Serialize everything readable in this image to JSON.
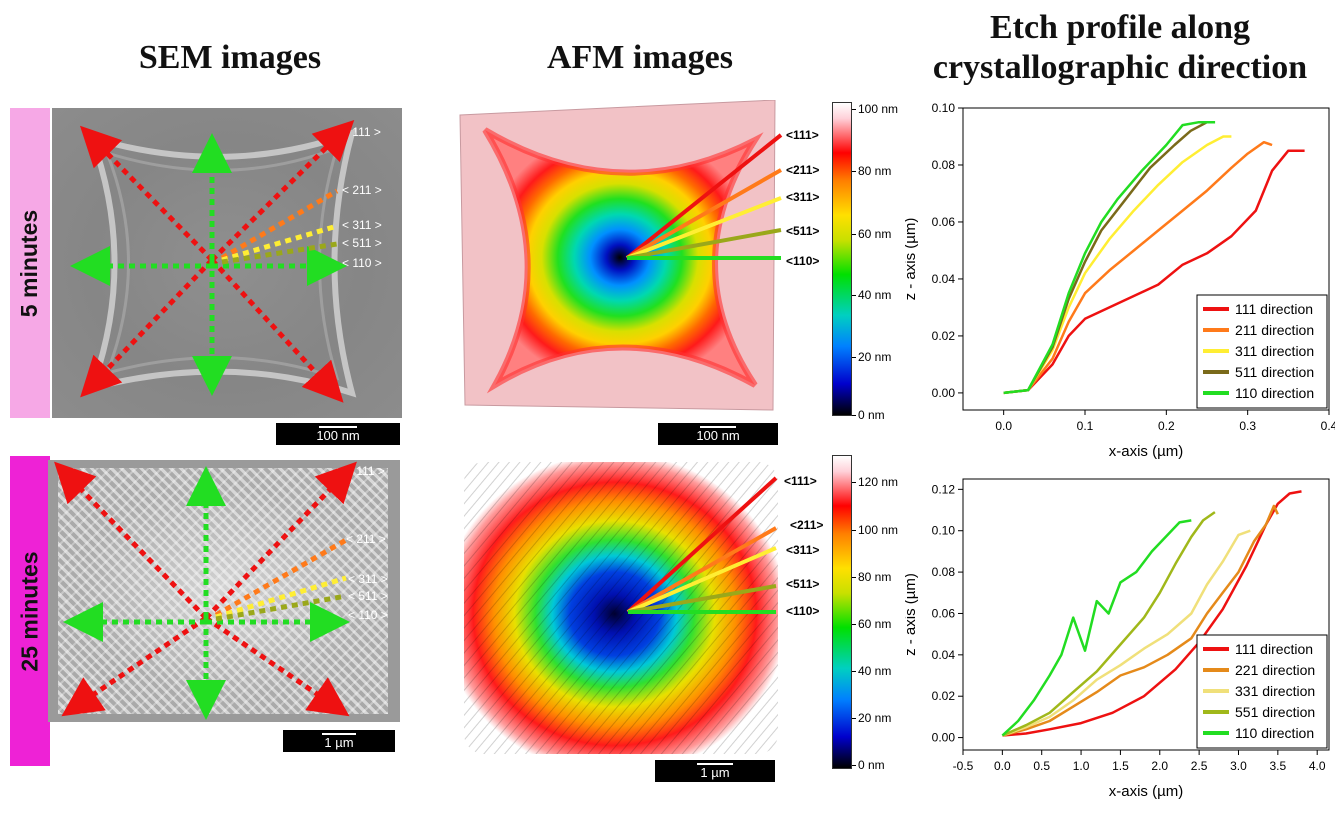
{
  "headings": {
    "sem": "SEM images",
    "afm": "AFM images",
    "etch_line1": "Etch profile along",
    "etch_line2": "crystallographic direction"
  },
  "rows": [
    {
      "label": "5 minutes",
      "label_color": "#f6a8e6",
      "sem_scale": "100 nm",
      "afm_scale": "100 nm",
      "sem_directions": [
        "< 111 >",
        "< 211 >",
        "< 311 >",
        "< 511 >",
        "< 110 >"
      ],
      "afm_directions": [
        "<111>",
        "<211>",
        "<311>",
        "<511>",
        "<110>"
      ],
      "colorbar_ticks": [
        "100 nm",
        "80 nm",
        "60 nm",
        "40 nm",
        "20 nm",
        "0 nm"
      ]
    },
    {
      "label": "25 minutes",
      "label_color": "#ee22d6",
      "sem_scale": "1 µm",
      "afm_scale": "1 µm",
      "sem_directions": [
        "< 111 >",
        "< 211 >",
        "< 311 >",
        "< 511 >",
        "< 110 >"
      ],
      "afm_directions": [
        "<111>",
        "<211>",
        "<311>",
        "<511>",
        "<110>"
      ],
      "colorbar_ticks": [
        "120 nm",
        "100 nm",
        "80 nm",
        "60 nm",
        "40 nm",
        "20 nm",
        "0 nm"
      ]
    }
  ],
  "colors": {
    "dir_111": "#ee1111",
    "dir_211": "#ff7a1a",
    "dir_311": "#ffee33",
    "dir_511": "#8a9a1a",
    "dir_110": "#22dd22",
    "sem_bg": "#8a8a8a"
  },
  "chart_data": [
    {
      "type": "line",
      "xlabel": "x-axis (µm)",
      "ylabel": "z - axis (µm)",
      "xlim": [
        -0.05,
        0.4
      ],
      "ylim": [
        -0.006,
        0.1
      ],
      "xticks": [
        "0.0",
        "0.1",
        "0.2",
        "0.3",
        "0.4"
      ],
      "yticks": [
        "0.00",
        "0.02",
        "0.04",
        "0.06",
        "0.08",
        "0.10"
      ],
      "legend_position": "bottom-right",
      "series": [
        {
          "name": "111 direction",
          "color": "#ee1111",
          "x": [
            0.0,
            0.03,
            0.06,
            0.08,
            0.1,
            0.13,
            0.16,
            0.19,
            0.22,
            0.25,
            0.28,
            0.31,
            0.33,
            0.35,
            0.37
          ],
          "y": [
            0.0,
            0.001,
            0.01,
            0.02,
            0.026,
            0.03,
            0.034,
            0.038,
            0.045,
            0.049,
            0.055,
            0.064,
            0.078,
            0.085,
            0.085
          ]
        },
        {
          "name": "211 direction",
          "color": "#ff7a1a",
          "x": [
            0.0,
            0.03,
            0.06,
            0.08,
            0.1,
            0.13,
            0.16,
            0.19,
            0.22,
            0.25,
            0.28,
            0.3,
            0.32,
            0.33
          ],
          "y": [
            0.0,
            0.001,
            0.012,
            0.025,
            0.035,
            0.043,
            0.05,
            0.057,
            0.064,
            0.071,
            0.079,
            0.084,
            0.088,
            0.087
          ]
        },
        {
          "name": "311 direction",
          "color": "#ffee33",
          "x": [
            0.0,
            0.03,
            0.06,
            0.08,
            0.1,
            0.13,
            0.16,
            0.19,
            0.22,
            0.25,
            0.27,
            0.28
          ],
          "y": [
            0.0,
            0.001,
            0.015,
            0.03,
            0.042,
            0.054,
            0.064,
            0.073,
            0.081,
            0.087,
            0.09,
            0.09
          ]
        },
        {
          "name": "511 direction",
          "color": "#7a6a1a",
          "x": [
            0.0,
            0.03,
            0.06,
            0.08,
            0.1,
            0.12,
            0.15,
            0.18,
            0.21,
            0.23,
            0.25
          ],
          "y": [
            0.0,
            0.001,
            0.016,
            0.033,
            0.046,
            0.057,
            0.068,
            0.079,
            0.087,
            0.092,
            0.095
          ]
        },
        {
          "name": "110 direction",
          "color": "#22dd22",
          "x": [
            0.0,
            0.03,
            0.06,
            0.08,
            0.1,
            0.12,
            0.14,
            0.17,
            0.2,
            0.22,
            0.24,
            0.26
          ],
          "y": [
            0.0,
            0.001,
            0.017,
            0.035,
            0.049,
            0.06,
            0.068,
            0.078,
            0.087,
            0.094,
            0.095,
            0.095
          ]
        }
      ]
    },
    {
      "type": "line",
      "xlabel": "x-axis (µm)",
      "ylabel": "z - axis (µm)",
      "xlim": [
        -0.5,
        4.15
      ],
      "ylim": [
        -0.006,
        0.125
      ],
      "xticks": [
        "-0.5",
        "0.0",
        "0.5",
        "1.0",
        "1.5",
        "2.0",
        "2.5",
        "3.0",
        "3.5",
        "4.0"
      ],
      "yticks": [
        "0.00",
        "0.02",
        "0.04",
        "0.06",
        "0.08",
        "0.10",
        "0.12"
      ],
      "legend_position": "bottom-right",
      "series": [
        {
          "name": "111 direction",
          "color": "#ee1111",
          "x": [
            0.0,
            0.3,
            0.6,
            1.0,
            1.4,
            1.8,
            2.2,
            2.5,
            2.8,
            3.1,
            3.35,
            3.5,
            3.65,
            3.8
          ],
          "y": [
            0.001,
            0.002,
            0.004,
            0.007,
            0.012,
            0.02,
            0.033,
            0.046,
            0.062,
            0.083,
            0.103,
            0.113,
            0.118,
            0.119
          ]
        },
        {
          "name": "221 direction",
          "color": "#e58a1a",
          "x": [
            0.0,
            0.3,
            0.6,
            0.9,
            1.2,
            1.5,
            1.8,
            2.1,
            2.4,
            2.6,
            2.8,
            3.0,
            3.2,
            3.35,
            3.45,
            3.5
          ],
          "y": [
            0.001,
            0.004,
            0.008,
            0.015,
            0.022,
            0.03,
            0.034,
            0.04,
            0.048,
            0.06,
            0.07,
            0.08,
            0.095,
            0.103,
            0.112,
            0.108
          ]
        },
        {
          "name": "331 direction",
          "color": "#f0e07a",
          "x": [
            0.0,
            0.3,
            0.6,
            0.9,
            1.2,
            1.5,
            1.8,
            2.1,
            2.4,
            2.6,
            2.8,
            3.0,
            3.15
          ],
          "y": [
            0.001,
            0.005,
            0.01,
            0.018,
            0.028,
            0.035,
            0.043,
            0.05,
            0.06,
            0.074,
            0.085,
            0.098,
            0.1
          ]
        },
        {
          "name": "551 direction",
          "color": "#a0b81a",
          "x": [
            0.0,
            0.3,
            0.6,
            0.9,
            1.2,
            1.5,
            1.8,
            2.0,
            2.2,
            2.4,
            2.55,
            2.7
          ],
          "y": [
            0.001,
            0.006,
            0.012,
            0.022,
            0.032,
            0.045,
            0.058,
            0.07,
            0.084,
            0.097,
            0.105,
            0.109
          ]
        },
        {
          "name": "110 direction",
          "color": "#22dd22",
          "x": [
            0.0,
            0.2,
            0.4,
            0.6,
            0.75,
            0.9,
            1.05,
            1.2,
            1.35,
            1.5,
            1.7,
            1.9,
            2.1,
            2.25,
            2.4
          ],
          "y": [
            0.001,
            0.008,
            0.018,
            0.03,
            0.04,
            0.058,
            0.042,
            0.066,
            0.06,
            0.075,
            0.08,
            0.09,
            0.098,
            0.104,
            0.105
          ]
        }
      ]
    }
  ]
}
